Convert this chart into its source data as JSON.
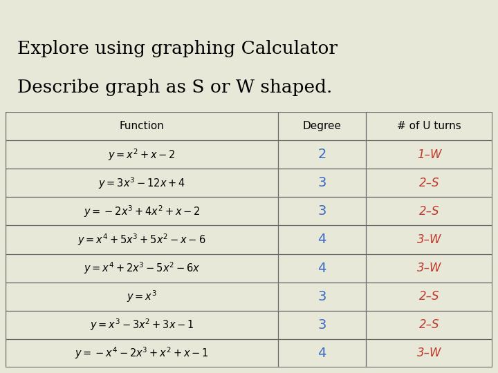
{
  "title_line1": "Explore using graphing Calculator",
  "title_line2": "Describe graph as S or W shaped.",
  "title_color": "#000000",
  "title_fontsize": 19,
  "bg_color": "#e8e8d8",
  "top_bar1_color": "#8b8b5a",
  "top_bar2_color": "#8b0000",
  "top_square_color": "#8b0000",
  "col_headers": [
    "Function",
    "Degree",
    "# of U turns"
  ],
  "rows": [
    {
      "func": "$y=x^{2}+x-2$",
      "degree": "2",
      "turns": "1–W"
    },
    {
      "func": "$y=3x^{3}-12x+4$",
      "degree": "3",
      "turns": "2–S"
    },
    {
      "func": "$y=-2x^{3}+4x^{2}+x-2$",
      "degree": "3",
      "turns": "2–S"
    },
    {
      "func": "$y=x^{4}+5x^{3}+5x^{2}-x-6$",
      "degree": "4",
      "turns": "3–W"
    },
    {
      "func": "$y=x^{4}+2x^{3}-5x^{2}-6x$",
      "degree": "4",
      "turns": "3–W"
    },
    {
      "func": "$y=x^{3}$",
      "degree": "3",
      "turns": "2–S"
    },
    {
      "func": "$y=x^{3}-3x^{2}+3x-1$",
      "degree": "3",
      "turns": "2–S"
    },
    {
      "func": "$y=-x^{4}-2x^{3}+x^{2}+x-1$",
      "degree": "4",
      "turns": "3–W"
    }
  ],
  "degree_color": "#3a6bc4",
  "turns_color": "#c0392b",
  "func_color": "#000000",
  "border_color": "#666666",
  "table_bg": "#ffffff",
  "func_fontsize": 10.5,
  "header_fontsize": 11,
  "data_fontsize": 12
}
